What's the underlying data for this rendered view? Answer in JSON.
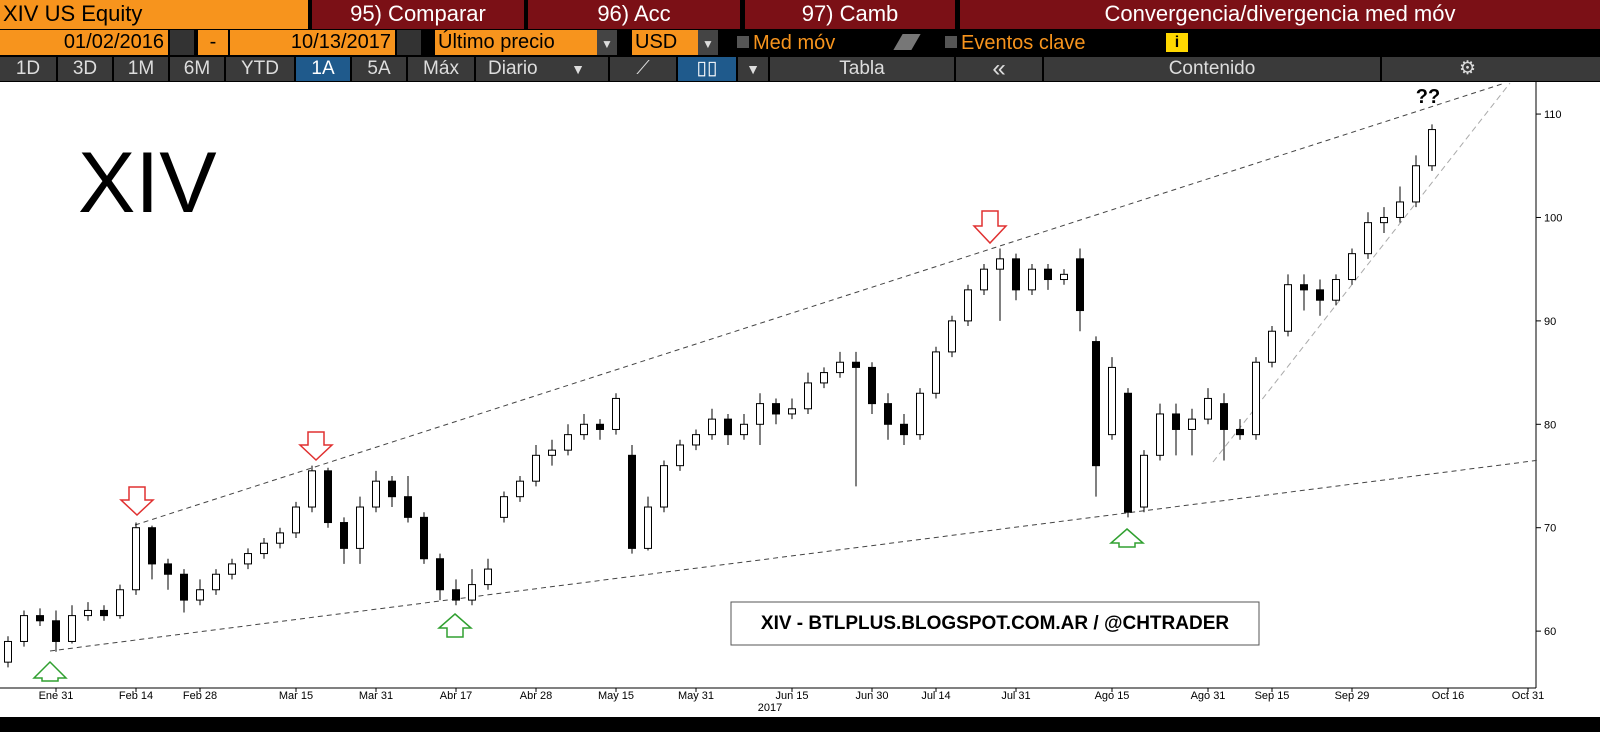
{
  "toolbar": {
    "ticker": "XIV US Equity",
    "tabs": [
      "95) Comparar",
      "96) Acc",
      "97) Camb"
    ],
    "function_title": "Convergencia/divergencia med móv",
    "start_date": "01/02/2016",
    "separator": "-",
    "end_date": "10/13/2017",
    "price_field": "Último precio",
    "currency": "USD",
    "checkboxes": [
      "Med móv",
      "Eventos clave"
    ],
    "periods": [
      "1D",
      "3D",
      "1M",
      "6M",
      "YTD",
      "1A",
      "5A",
      "Máx"
    ],
    "frequency": "Diario",
    "table": "Tabla",
    "back": "«",
    "contents": "Contenido"
  },
  "chart_data": {
    "type": "candlestick",
    "categories": [
      null,
      null,
      null,
      "Ene 31",
      null,
      null,
      null,
      null,
      "Feb 14",
      null,
      null,
      null,
      "Feb 28",
      null,
      null,
      null,
      null,
      null,
      "Mar 15",
      null,
      null,
      null,
      null,
      "Mar 31",
      null,
      null,
      null,
      null,
      "Abr 17",
      null,
      null,
      null,
      null,
      "Abr 28",
      null,
      null,
      null,
      null,
      "May 15",
      null,
      null,
      null,
      null,
      "May 31",
      null,
      null,
      null,
      null,
      null,
      "Jun 15",
      null,
      null,
      null,
      null,
      "Jun 30",
      null,
      null,
      null,
      "Jul 14",
      null,
      null,
      null,
      null,
      "Jul 31",
      null,
      null,
      null,
      null,
      null,
      "Ago 15",
      null,
      null,
      null,
      null,
      null,
      "Ago 31",
      null,
      null,
      null,
      "Sep 15",
      null,
      null,
      null,
      null,
      "Sep 29",
      null,
      null,
      null,
      null,
      null,
      "Oct 16",
      null,
      null,
      null,
      null,
      "Oct 31"
    ],
    "open": [
      57,
      59,
      61.5,
      61,
      59,
      61.5,
      62,
      61.5,
      64,
      70,
      66.5,
      65.5,
      63,
      64,
      65.5,
      66.5,
      67.5,
      68.5,
      69.5,
      72,
      75.5,
      70.5,
      68,
      72,
      74.5,
      73,
      71,
      67,
      64,
      63,
      64.5,
      71,
      73,
      74.5,
      77,
      77.5,
      79,
      80,
      79.5,
      77,
      68,
      72,
      76,
      78,
      79,
      80.5,
      79,
      80,
      82,
      81,
      81.5,
      84,
      85,
      86,
      85.5,
      82,
      80,
      79,
      83,
      87,
      90,
      93,
      95,
      96,
      93,
      95,
      94,
      96,
      88,
      79,
      83,
      72,
      77,
      81,
      79.5,
      80.5,
      82,
      79.5,
      79,
      86,
      89,
      93.5,
      93,
      92,
      94,
      96.5,
      99.5,
      100,
      101.5,
      105,
      null,
      null,
      null,
      null,
      null,
      null
    ],
    "high": [
      59.5,
      62,
      62.2,
      62,
      62.5,
      62.8,
      62.5,
      64.5,
      70.5,
      70.2,
      67,
      66,
      65,
      66,
      67,
      68,
      69,
      70,
      72.5,
      76,
      75.8,
      71,
      73,
      75.5,
      75,
      75,
      71.5,
      67.5,
      65,
      66,
      67,
      73.5,
      75,
      78,
      78.5,
      80,
      81,
      80.5,
      83,
      78,
      73,
      76.5,
      78.5,
      79.5,
      81.5,
      81,
      81,
      83,
      82.5,
      82.5,
      85,
      85.5,
      87,
      87,
      86,
      83,
      81,
      83.5,
      87.5,
      90.5,
      93.5,
      95.5,
      97,
      96.5,
      95.5,
      95.5,
      95,
      97,
      88.5,
      86.5,
      83.5,
      77.5,
      82,
      82,
      81.5,
      83.5,
      83,
      80.5,
      86.5,
      89.5,
      94.5,
      94.5,
      94,
      94.5,
      97,
      100.5,
      101,
      103,
      106,
      109,
      null,
      null,
      null,
      null,
      null,
      null
    ],
    "low": [
      56.5,
      58.5,
      60.5,
      58,
      58.8,
      61,
      61,
      61.2,
      63.5,
      65,
      64,
      61.8,
      62.5,
      63.5,
      65,
      66,
      67,
      68,
      69,
      71.5,
      70,
      66.5,
      66.5,
      71.5,
      72,
      70.5,
      66.5,
      63,
      62.5,
      62.5,
      64,
      70.5,
      72.5,
      74,
      76,
      77,
      78.5,
      78.5,
      79,
      67.5,
      67.8,
      71.5,
      75.5,
      77.5,
      78.5,
      78,
      78.5,
      78,
      80,
      80.5,
      81,
      83.5,
      84.5,
      74,
      81,
      78.5,
      78,
      78.5,
      82.5,
      86.5,
      89.5,
      92.5,
      90,
      92,
      92.5,
      93,
      93.5,
      89,
      73,
      78.5,
      71,
      71.5,
      76.5,
      77,
      77,
      80,
      76.5,
      78.5,
      78.5,
      85.5,
      88.5,
      91,
      90.5,
      91.5,
      93.5,
      96,
      98.5,
      99.5,
      101,
      104.5,
      null,
      null,
      null,
      null,
      null,
      null
    ],
    "close": [
      59,
      61.5,
      61,
      59,
      61.5,
      62,
      61.5,
      64,
      70,
      66.5,
      65.5,
      63,
      64,
      65.5,
      66.5,
      67.5,
      68.5,
      69.5,
      72,
      75.5,
      70.5,
      68,
      72,
      74.5,
      73,
      71,
      67,
      64,
      63,
      64.5,
      66,
      73,
      74.5,
      77,
      77.5,
      79,
      80,
      79.5,
      82.5,
      68,
      72,
      76,
      78,
      79,
      80.5,
      79,
      80,
      82,
      81,
      81.5,
      84,
      85,
      86,
      85.5,
      82,
      80,
      79,
      83,
      87,
      90,
      93,
      95,
      96,
      93,
      95,
      94,
      94.5,
      91,
      76,
      85.5,
      71.5,
      77,
      81,
      79.5,
      80.5,
      82.5,
      79.5,
      79,
      86,
      89,
      93.5,
      93,
      92,
      94,
      96.5,
      99.5,
      100,
      101.5,
      105,
      108.5,
      null,
      null,
      null,
      null,
      null,
      null
    ],
    "up_color": "#ffffff",
    "down_color": "#000000",
    "ylim": [
      54.5,
      113.1
    ],
    "yticks": [
      60,
      70,
      80,
      90,
      100,
      110
    ],
    "xaxis_year": "2017",
    "annotations": [
      "XIV",
      "??",
      "XIV - BTLPLUS.BLOGSPOT.COM.AR / @CHTRADER"
    ]
  }
}
